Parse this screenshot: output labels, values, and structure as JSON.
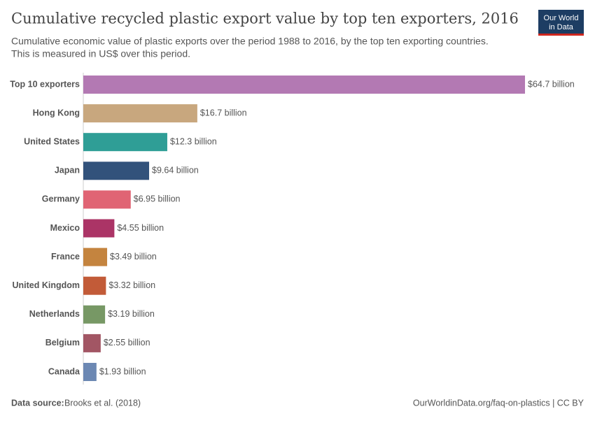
{
  "chart_data": {
    "type": "bar",
    "orientation": "horizontal",
    "title": "Cumulative recycled plastic export value by top ten exporters, 2016",
    "subtitle": [
      "Cumulative economic value of plastic exports over the period 1988 to 2016, by the top ten exporting countries.",
      "This is measured in US$ over this period."
    ],
    "categories": [
      "Top 10 exporters",
      "Hong Kong",
      "United States",
      "Japan",
      "Germany",
      "Mexico",
      "France",
      "United Kingdom",
      "Netherlands",
      "Belgium",
      "Canada"
    ],
    "values": [
      64.7,
      16.7,
      12.3,
      9.64,
      6.95,
      4.55,
      3.49,
      3.32,
      3.19,
      2.55,
      1.93
    ],
    "value_labels": [
      "$64.7 billion",
      "$16.7 billion",
      "$12.3 billion",
      "$9.64 billion",
      "$6.95 billion",
      "$4.55 billion",
      "$3.49 billion",
      "$3.32 billion",
      "$3.19 billion",
      "$2.55 billion",
      "$1.93 billion"
    ],
    "colors": [
      "#b379b3",
      "#c8a77e",
      "#2f9e96",
      "#32527b",
      "#e06474",
      "#ab3466",
      "#c4843f",
      "#c25b38",
      "#779865",
      "#a25664",
      "#6c88b3"
    ],
    "source_label": "Data source:",
    "source": "Brooks et al. (2018)",
    "url": "OurWorldinData.org/faq-on-plastics | CC BY",
    "logo": [
      "Our World",
      "in Data"
    ]
  }
}
